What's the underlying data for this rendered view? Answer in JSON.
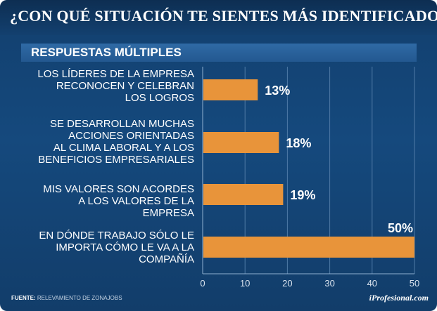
{
  "title": "¿CON QUÉ SITUACIÓN TE SIENTES MÁS IDENTIFICADO?",
  "subtitle": "RESPUESTAS MÚLTIPLES",
  "source_label": "FUENTE:",
  "source_text": "RELEVAMIENTO DE ZONAJOBS",
  "brand": "iProfesional.com",
  "colors": {
    "bar": "#e8943a",
    "background": "#13406f"
  },
  "chart_data": {
    "type": "bar",
    "orientation": "horizontal",
    "categories": [
      "LOS LÍDERES DE LA EMPRESA\nRECONOCEN Y CELEBRAN\nLOS LOGROS",
      "SE DESARROLLAN MUCHAS\nACCIONES ORIENTADAS\nAL CLIMA LABORAL Y A LOS\nBENEFICIOS EMPRESARIALES",
      "MIS VALORES SON ACORDES\nA LOS VALORES DE LA EMPRESA",
      "EN DÓNDE TRABAJO SÓLO LE\nIMPORTA CÓMO LE VA A LA\nCOMPAÑÍA"
    ],
    "values": [
      13,
      18,
      19,
      50
    ],
    "value_labels": [
      "13%",
      "18%",
      "19%",
      "50%"
    ],
    "xlim": [
      0,
      50
    ],
    "xticks": [
      0,
      10,
      20,
      30,
      40,
      50
    ],
    "grid": true,
    "unit": "%"
  }
}
